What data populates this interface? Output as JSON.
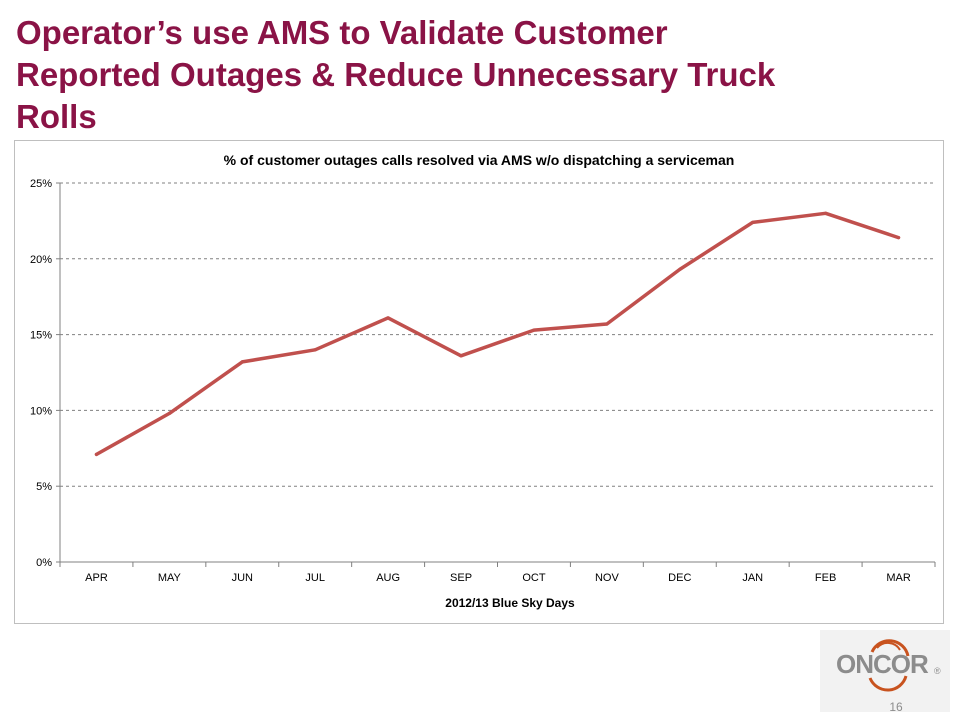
{
  "slide": {
    "title_lines": [
      "Operator’s use AMS to Validate Customer",
      "Reported Outages & Reduce Unnecessary Truck",
      "Rolls"
    ],
    "page_number": "16",
    "logo_text": "ONCOR",
    "logo_mark": "®"
  },
  "colors": {
    "title": "#8a1346",
    "series_line": "#c0504d",
    "logo_text": "#8c8c8c",
    "logo_ring": "#c8531f"
  },
  "chart_data": {
    "type": "line",
    "title": "% of customer outages calls resolved via AMS w/o dispatching a serviceman",
    "xlabel": "2012/13 Blue Sky Days",
    "ylabel": "",
    "categories": [
      "APR",
      "MAY",
      "JUN",
      "JUL",
      "AUG",
      "SEP",
      "OCT",
      "NOV",
      "DEC",
      "JAN",
      "FEB",
      "MAR"
    ],
    "series": [
      {
        "values": [
          0.071,
          0.098,
          0.132,
          0.14,
          0.161,
          0.136,
          0.153,
          0.157,
          0.193,
          0.224,
          0.23,
          0.214
        ]
      }
    ],
    "ylim": [
      0,
      0.25
    ],
    "yticks": [
      0,
      0.05,
      0.1,
      0.15,
      0.2,
      0.25
    ],
    "ytick_labels": [
      "0%",
      "5%",
      "10%",
      "15%",
      "20%",
      "25%"
    ],
    "grid": "horizontal dashed",
    "legend": "none"
  }
}
